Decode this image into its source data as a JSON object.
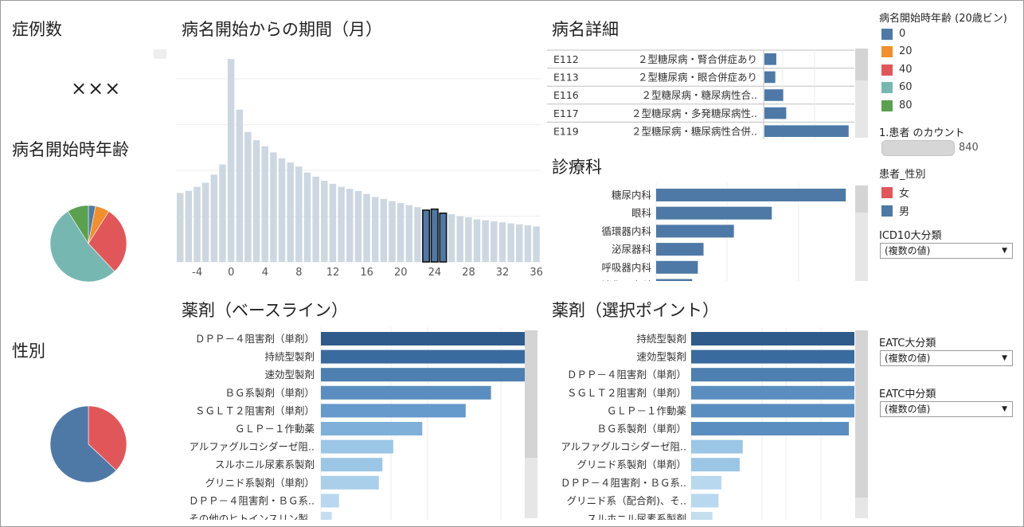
{
  "titles": {
    "case_count": "症例数",
    "age_at_onset": "病名開始時年齢",
    "sex": "性別",
    "period": "病名開始からの期間（月）",
    "disease_detail": "病名詳細",
    "department": "診療科",
    "drug_baseline": "薬剤（ベースライン）",
    "drug_selected": "薬剤（選択ポイント）"
  },
  "case_count_value": "×××",
  "legend_age": {
    "title": "病名開始時年齢 (20歳ビン)",
    "items": [
      {
        "label": "0",
        "color": "#4e79a7"
      },
      {
        "label": "20",
        "color": "#f28e2b"
      },
      {
        "label": "40",
        "color": "#e15759"
      },
      {
        "label": "60",
        "color": "#76b7b2"
      },
      {
        "label": "80",
        "color": "#59a14f"
      }
    ]
  },
  "legend_count": {
    "title": "1.患者 のカウント",
    "max_label": "840"
  },
  "legend_sex": {
    "title": "患者_性別",
    "items": [
      {
        "label": "女",
        "color": "#e15759"
      },
      {
        "label": "男",
        "color": "#4e79a7"
      }
    ]
  },
  "filters": {
    "icd10": {
      "title": "ICD10大分類",
      "value": "(複数の値)"
    },
    "eatc_major": {
      "title": "EATC大分類",
      "value": "(複数の値)"
    },
    "eatc_mid": {
      "title": "EATC中分類",
      "value": "(複数の値)"
    }
  },
  "chart_data": [
    {
      "id": "age_pie",
      "type": "pie",
      "title": "病名開始時年齢",
      "slices": [
        {
          "label": "0",
          "value": 3,
          "color": "#4e79a7"
        },
        {
          "label": "20",
          "value": 6,
          "color": "#f28e2b"
        },
        {
          "label": "40",
          "value": 29,
          "color": "#e15759"
        },
        {
          "label": "60",
          "value": 53,
          "color": "#76b7b2"
        },
        {
          "label": "80",
          "value": 9,
          "color": "#59a14f"
        }
      ]
    },
    {
      "id": "sex_pie",
      "type": "pie",
      "title": "性別",
      "slices": [
        {
          "label": "女",
          "value": 37,
          "color": "#e15759"
        },
        {
          "label": "男",
          "value": 63,
          "color": "#4e79a7"
        }
      ]
    },
    {
      "id": "period_hist",
      "type": "bar",
      "title": "病名開始からの期間（月）",
      "x": [
        -6,
        -5,
        -4,
        -3,
        -2,
        -1,
        0,
        1,
        2,
        3,
        4,
        5,
        6,
        7,
        8,
        9,
        10,
        11,
        12,
        13,
        14,
        15,
        16,
        17,
        18,
        19,
        20,
        21,
        22,
        23,
        24,
        25,
        26,
        27,
        28,
        29,
        30,
        31,
        32,
        33,
        34,
        35,
        36
      ],
      "values": [
        340,
        350,
        370,
        390,
        430,
        480,
        1000,
        750,
        640,
        600,
        570,
        540,
        510,
        490,
        470,
        440,
        420,
        400,
        385,
        370,
        360,
        350,
        335,
        320,
        310,
        300,
        290,
        280,
        270,
        255,
        260,
        240,
        235,
        225,
        220,
        210,
        205,
        200,
        195,
        190,
        185,
        180,
        175
      ],
      "highlight_x": [
        23,
        24,
        25
      ],
      "xticks": [
        "-4",
        "0",
        "4",
        "8",
        "12",
        "16",
        "20",
        "24",
        "28",
        "32",
        "36"
      ],
      "ylim": [
        0,
        1020
      ],
      "color": "#cdd7e1",
      "highlight_color": "#4e79a7"
    },
    {
      "id": "disease_detail",
      "type": "table",
      "title": "病名詳細",
      "rows": [
        {
          "code": "E112",
          "name": "２型糖尿病・腎合併症あり",
          "value": 12
        },
        {
          "code": "E113",
          "name": "２型糖尿病・眼合併症あり",
          "value": 11
        },
        {
          "code": "E116",
          "name": "２型糖尿病・糖尿病性合..",
          "value": 19
        },
        {
          "code": "E117",
          "name": "２型糖尿病・多発糖尿病性..",
          "value": 22
        },
        {
          "code": "E119",
          "name": "２型糖尿病・糖尿病性合併..",
          "value": 85
        }
      ],
      "xlim": [
        0,
        90
      ]
    },
    {
      "id": "department",
      "type": "bar",
      "title": "診療科",
      "categories": [
        "糖尿内科",
        "眼科",
        "循環器内科",
        "泌尿器科",
        "呼吸器内科",
        "消化器内科"
      ],
      "values": [
        100,
        61,
        41,
        25,
        22,
        19
      ],
      "xlim": [
        0,
        110
      ]
    },
    {
      "id": "drug_baseline",
      "type": "bar",
      "title": "薬剤（ベースライン）",
      "categories": [
        "ＤＰＰ－４阻害剤（単剤）",
        "持続型製剤",
        "速効型製剤",
        "ＢＧ系製剤（単剤）",
        "ＳＧＬＴ２阻害剤（単剤）",
        "ＧＬＰ－１作動薬",
        "アルファグルコシダーゼ阻..",
        "スルホニル尿素系製剤",
        "グリニド系製剤（単剤）",
        "ＤＰＰ－４阻害剤・ＢＧ系..",
        "その他のヒトインスリン製.."
      ],
      "values": [
        100,
        84,
        60,
        47,
        40,
        28,
        20,
        17,
        16,
        5,
        3
      ],
      "colors": [
        "#2e5b8a",
        "#3a6b9e",
        "#4d7fb0",
        "#5b8ec0",
        "#6699cc",
        "#7eb0da",
        "#9cc6e6",
        "#9cc6e6",
        "#a9cfea",
        "#b8d8ef",
        "#c4deef"
      ],
      "xlim": [
        0,
        110
      ]
    },
    {
      "id": "drug_selected",
      "type": "bar",
      "title": "薬剤（選択ポイント）",
      "categories": [
        "持続型製剤",
        "速効型製剤",
        "ＤＰＰ－４阻害剤（単剤）",
        "ＳＧＬＴ２阻害剤（単剤）",
        "ＧＬＰ－１作動薬",
        "ＢＧ系製剤（単剤）",
        "アルファグルコシダーゼ阻..",
        "グリニド系製剤（単剤）",
        "ＤＰＰ－４阻害剤・ＢＧ系..",
        "グリニド系（配合剤)、そ..",
        "スルホニル尿素系製剤"
      ],
      "values": [
        100,
        68,
        58,
        56,
        56,
        52,
        17,
        16,
        10,
        9,
        7
      ],
      "colors": [
        "#2e5b8a",
        "#3a6b9e",
        "#4d7fb0",
        "#5b8ec0",
        "#5b8ec0",
        "#5b8ec0",
        "#9cc6e6",
        "#9cc6e6",
        "#b8d8ef",
        "#b8d8ef",
        "#c4deef"
      ],
      "xlim": [
        0,
        110
      ]
    }
  ]
}
